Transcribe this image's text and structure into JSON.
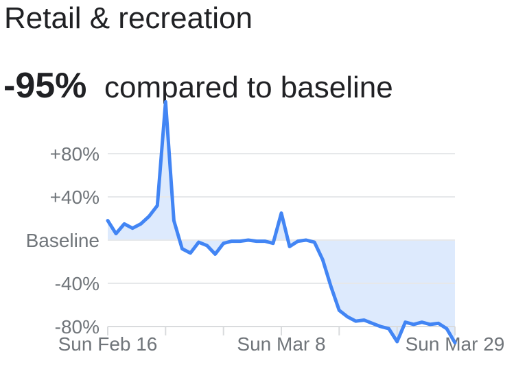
{
  "header": {
    "title": "Retail & recreation",
    "value": "-95%",
    "caption": "compared to baseline"
  },
  "chart_data": {
    "type": "area",
    "title": "Retail & recreation",
    "subtitle": "-95% compared to baseline",
    "categories": [
      "Feb 16",
      "Feb 17",
      "Feb 18",
      "Feb 19",
      "Feb 20",
      "Feb 21",
      "Feb 22",
      "Feb 23",
      "Feb 24",
      "Feb 25",
      "Feb 26",
      "Feb 27",
      "Feb 28",
      "Feb 29",
      "Mar 1",
      "Mar 2",
      "Mar 3",
      "Mar 4",
      "Mar 5",
      "Mar 6",
      "Mar 7",
      "Mar 8",
      "Mar 9",
      "Mar 10",
      "Mar 11",
      "Mar 12",
      "Mar 13",
      "Mar 14",
      "Mar 15",
      "Mar 16",
      "Mar 17",
      "Mar 18",
      "Mar 19",
      "Mar 20",
      "Mar 21",
      "Mar 22",
      "Mar 23",
      "Mar 24",
      "Mar 25",
      "Mar 26",
      "Mar 27",
      "Mar 28",
      "Mar 29"
    ],
    "values": [
      18,
      6,
      15,
      11,
      15,
      22,
      32,
      128,
      18,
      -8,
      -12,
      -2,
      -5,
      -13,
      -3,
      -1,
      -1,
      0,
      -1,
      -1,
      -3,
      25,
      -6,
      -1,
      0,
      -2,
      -18,
      -43,
      -65,
      -71,
      -75,
      -74,
      -77,
      -80,
      -82,
      -94,
      -76,
      -78,
      -76,
      -78,
      -77,
      -82,
      -95
    ],
    "ylabel": "",
    "xlabel": "",
    "ylim": [
      -100,
      135
    ],
    "grid": "horizontal-only",
    "legend": "none",
    "y_ticks": [
      {
        "label": "+80%",
        "value": 80
      },
      {
        "label": "+40%",
        "value": 40
      },
      {
        "label": "Baseline",
        "value": 0
      },
      {
        "label": "-40%",
        "value": -40
      },
      {
        "label": "-80%",
        "value": -80
      }
    ],
    "x_axis": {
      "tick_interval_days": 7,
      "labels": [
        {
          "index": 0,
          "label": "Sun Feb 16"
        },
        {
          "index": 21,
          "label": "Sun Mar 8"
        },
        {
          "index": 42,
          "label": "Sun Mar 29"
        }
      ]
    },
    "colors": {
      "line": "#4285f4",
      "fill": "#d2e3fc",
      "grid": "#e6e8ea",
      "axis": "#d9dbdd",
      "labels": "#70757a",
      "text": "#202124"
    }
  }
}
